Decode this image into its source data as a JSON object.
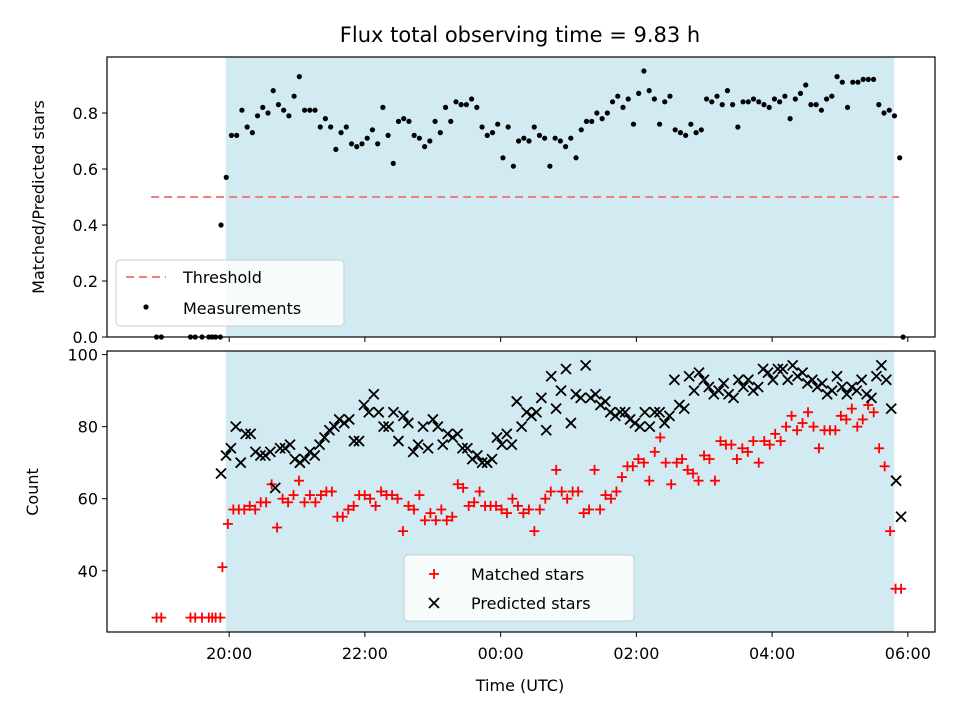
{
  "title": "Flux total observing time = 9.83 h",
  "colors": {
    "shade": "#add8e6",
    "threshold": "#f08080",
    "matched": "#ff0000",
    "predicted": "#000000",
    "measure": "#000000"
  },
  "chart_data": [
    {
      "type": "scatter",
      "panel": "top",
      "ylabel": "Matched/Predicted stars",
      "ylim": [
        0,
        1.0
      ],
      "yticks": [
        "0.0",
        "0.2",
        "0.4",
        "0.6",
        "0.8"
      ],
      "shaded_interval_hours": [
        19.95,
        29.8
      ],
      "threshold": {
        "name": "Threshold",
        "value": 0.5,
        "x_range_hours": [
          18.85,
          29.87
        ]
      },
      "legend": [
        "Threshold",
        "Measurements"
      ],
      "legend_position": "lower left",
      "series": [
        {
          "name": "Measurements",
          "x_hours": [],
          "y": []
        }
      ]
    },
    {
      "type": "scatter",
      "panel": "bottom",
      "xlabel": "Time (UTC)",
      "ylabel": "Count",
      "ylim": [
        23,
        101
      ],
      "yticks": [
        "40",
        "60",
        "80",
        "100"
      ],
      "xticks": [
        "20:00",
        "22:00",
        "00:00",
        "02:00",
        "04:00",
        "06:00"
      ],
      "xtick_hours": [
        20,
        22,
        24,
        26,
        28,
        30
      ],
      "xlim_hours": [
        18.2,
        30.4
      ],
      "shaded_interval_hours": [
        19.95,
        29.8
      ],
      "legend": [
        "Matched stars",
        "Predicted stars"
      ],
      "legend_position": "lower center",
      "series": [
        {
          "name": "Matched stars",
          "marker": "+",
          "x_hours": [],
          "y": []
        },
        {
          "name": "Predicted stars",
          "marker": "x",
          "x_hours": [],
          "y": []
        }
      ]
    }
  ]
}
